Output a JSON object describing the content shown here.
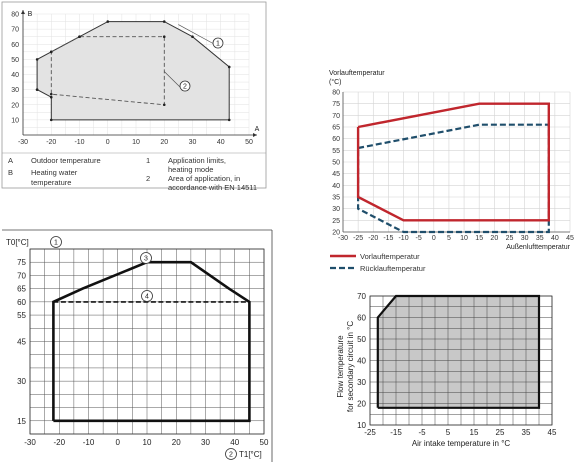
{
  "chart_data": [
    {
      "type": "area",
      "x_axis_letter": "A",
      "y_axis_letter": "B",
      "xlim": [
        -30,
        50
      ],
      "ylim": [
        0,
        80
      ],
      "x_ticks": [
        -30,
        -20,
        -10,
        0,
        10,
        20,
        30,
        40,
        50
      ],
      "y_ticks": [
        10,
        20,
        30,
        40,
        50,
        60,
        70,
        80
      ],
      "grid": true,
      "series": [
        {
          "callout": "1",
          "style": "solid",
          "points": [
            [
              -25,
              30
            ],
            [
              -25,
              50
            ],
            [
              -10,
              65
            ],
            [
              0,
              75
            ],
            [
              20,
              75
            ],
            [
              30,
              65
            ],
            [
              43,
              45
            ],
            [
              43,
              10
            ],
            [
              -20,
              10
            ],
            [
              -20,
              25
            ],
            [
              -25,
              30
            ]
          ]
        },
        {
          "callout": "2",
          "style": "dashed",
          "points": [
            [
              -20,
              55
            ],
            [
              -10,
              65
            ],
            [
              20,
              65
            ],
            [
              20,
              20
            ],
            [
              -20,
              27
            ],
            [
              -20,
              55
            ]
          ]
        }
      ],
      "legend": [
        {
          "key": "A",
          "text": "Outdoor temperature"
        },
        {
          "key": "B",
          "text": "Heating water temperature",
          "lines": [
            "Heating water",
            "temperature"
          ]
        },
        {
          "key": "1",
          "text": "Application limits, heating mode",
          "lines": [
            "Application limits,",
            "heating mode"
          ]
        },
        {
          "key": "2",
          "text": "Area of application, in accordance with EN 14511",
          "lines": [
            "Area of application, in",
            "accordance with EN 14511"
          ]
        }
      ]
    },
    {
      "type": "line",
      "ylabel_lines": [
        "Vorlauftemperatur",
        "(°C)"
      ],
      "xlabel": "Außenlufttemperatur",
      "xlim": [
        -30,
        45
      ],
      "ylim": [
        20,
        80
      ],
      "x_ticks": [
        -30,
        -25,
        -20,
        -15,
        -10,
        -5,
        0,
        5,
        10,
        15,
        20,
        25,
        30,
        35,
        40,
        45
      ],
      "y_ticks": [
        20,
        25,
        30,
        35,
        40,
        45,
        50,
        55,
        60,
        65,
        70,
        75,
        80
      ],
      "grid": true,
      "series": [
        {
          "name": "Vorlauftemperatur",
          "color": "#c0262d",
          "style": "solid",
          "points": [
            [
              -25,
              65
            ],
            [
              15,
              75
            ],
            [
              38,
              75
            ],
            [
              38,
              25
            ],
            [
              -10,
              25
            ],
            [
              -25,
              35
            ],
            [
              -25,
              65
            ]
          ]
        },
        {
          "name": "Rücklauftemperatur",
          "color": "#1f4e6b",
          "style": "dashed",
          "points": [
            [
              -25,
              56
            ],
            [
              15,
              66
            ],
            [
              38,
              66
            ],
            [
              38,
              20
            ],
            [
              -10,
              20
            ],
            [
              -25,
              30
            ],
            [
              -25,
              56
            ]
          ]
        }
      ]
    },
    {
      "type": "line",
      "ylabel": "T0[°C]",
      "ylabel_marker": "1",
      "xlabel": "T1[°C]",
      "xlabel_marker": "2",
      "xlim": [
        -30,
        50
      ],
      "ylim": [
        10,
        80
      ],
      "x_ticks": [
        -30,
        -20,
        -10,
        0,
        10,
        20,
        30,
        40,
        50
      ],
      "y_ticks": [
        15,
        30,
        45,
        55,
        60,
        65,
        70,
        75
      ],
      "grid": true,
      "series": [
        {
          "callout": "3",
          "style": "solid",
          "points": [
            [
              -22,
              15
            ],
            [
              -22,
              60
            ],
            [
              -12,
              65
            ],
            [
              10,
              75
            ],
            [
              25,
              75
            ],
            [
              38,
              65
            ],
            [
              45,
              60
            ],
            [
              45,
              15
            ],
            [
              -22,
              15
            ]
          ]
        },
        {
          "callout": "4",
          "style": "dashed",
          "points": [
            [
              -22,
              60
            ],
            [
              45,
              60
            ]
          ]
        }
      ]
    },
    {
      "type": "area",
      "xlabel": "Air intake temperature in °C",
      "ylabel_lines": [
        "Flow temperature",
        "for secondary circuit in °C"
      ],
      "xlim": [
        -25,
        45
      ],
      "ylim": [
        10,
        70
      ],
      "x_ticks": [
        -25,
        -15,
        -5,
        5,
        15,
        25,
        35,
        45
      ],
      "x_tick_labels": [
        "-25",
        "-15",
        "-5",
        "5",
        "15",
        "25",
        "35",
        "45"
      ],
      "y_ticks": [
        10,
        20,
        30,
        40,
        50,
        60,
        70
      ],
      "grid": true,
      "series": [
        {
          "style": "solid",
          "fill": "#c8c8c8",
          "points": [
            [
              -22,
              18
            ],
            [
              -22,
              60
            ],
            [
              -15,
              70
            ],
            [
              40,
              70
            ],
            [
              40,
              18
            ],
            [
              -22,
              18
            ]
          ]
        }
      ]
    }
  ]
}
